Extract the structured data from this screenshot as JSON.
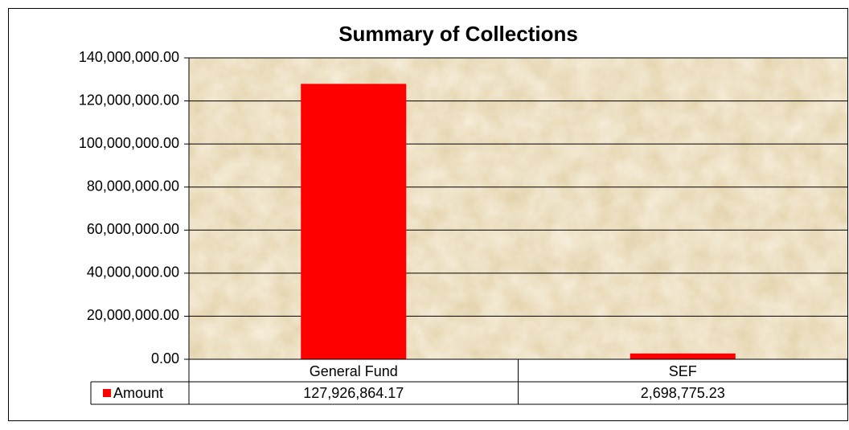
{
  "chart_data": {
    "type": "bar",
    "title": "Summary of Collections",
    "categories": [
      "General Fund",
      "SEF"
    ],
    "series": [
      {
        "name": "Amount",
        "color": "#ff0000",
        "values": [
          127926864.17,
          2698775.23
        ],
        "value_labels": [
          "127,926,864.17",
          "2,698,775.23"
        ]
      }
    ],
    "ylim": [
      0,
      140000000
    ],
    "yticks": [
      {
        "value": 0,
        "label": "0.00"
      },
      {
        "value": 20000000,
        "label": "20,000,000.00"
      },
      {
        "value": 40000000,
        "label": "40,000,000.00"
      },
      {
        "value": 60000000,
        "label": "60,000,000.00"
      },
      {
        "value": 80000000,
        "label": "80,000,000.00"
      },
      {
        "value": 100000000,
        "label": "100,000,000.00"
      },
      {
        "value": 120000000,
        "label": "120,000,000.00"
      },
      {
        "value": 140000000,
        "label": "140,000,000.00"
      }
    ],
    "grid": true
  }
}
